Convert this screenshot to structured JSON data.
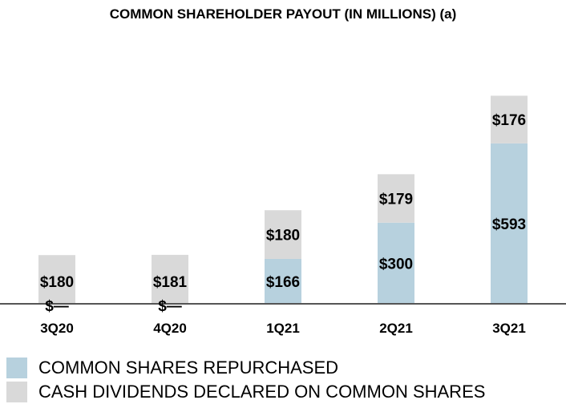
{
  "title": "COMMON SHAREHOLDER PAYOUT (IN MILLIONS) (a)",
  "colors": {
    "repurchased": "#b7d1de",
    "dividends": "#d9d9d9",
    "axis": "#555555"
  },
  "chart_data": {
    "type": "bar",
    "stacked": true,
    "title": "COMMON SHAREHOLDER PAYOUT (IN MILLIONS) (a)",
    "categories": [
      "3Q20",
      "4Q20",
      "1Q21",
      "2Q21",
      "3Q21"
    ],
    "series": [
      {
        "name": "COMMON SHARES REPURCHASED",
        "values": [
          0,
          0,
          166,
          300,
          593
        ],
        "labels": [
          "$—",
          "$—",
          "$166",
          "$300",
          "$593"
        ],
        "color": "#b7d1de"
      },
      {
        "name": "CASH DIVIDENDS DECLARED ON COMMON SHARES",
        "values": [
          180,
          181,
          180,
          179,
          176
        ],
        "labels": [
          "$180",
          "$181",
          "$180",
          "$179",
          "$176"
        ],
        "color": "#d9d9d9"
      }
    ],
    "ylim": [
      0,
      800
    ],
    "grid": false,
    "legend": "bottom-left"
  }
}
